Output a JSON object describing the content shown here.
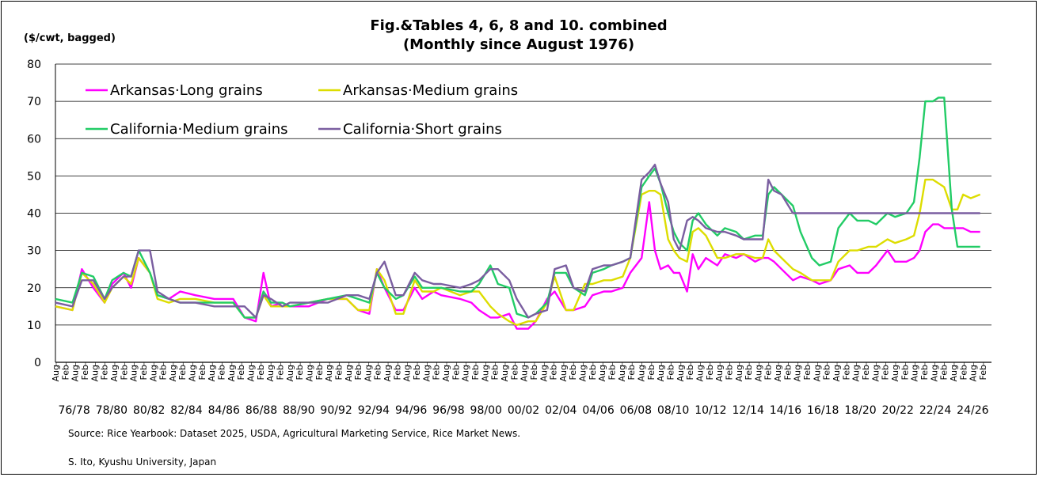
{
  "chart_data": {
    "type": "line",
    "title": "Fig.&Tables 4, 6, 8 and 10. combined",
    "subtitle": "(Monthly since August 1976)",
    "ylabel": "($/cwt, bagged)",
    "ylim": [
      0,
      80
    ],
    "yticks": [
      0,
      10,
      20,
      30,
      40,
      50,
      60,
      70,
      80
    ],
    "grid": true,
    "legend_position": "top-left",
    "x_tick_labels": [
      "Aug",
      "Feb",
      "Aug",
      "Feb",
      "Aug",
      "Feb",
      "Aug",
      "Feb",
      "Aug",
      "Feb",
      "Aug",
      "Feb",
      "Aug",
      "Feb",
      "Aug",
      "Feb",
      "Aug",
      "Feb",
      "Aug",
      "Feb",
      "Aug",
      "Feb",
      "Aug",
      "Feb",
      "Aug",
      "Feb",
      "Aug",
      "Feb",
      "Aug",
      "Feb",
      "Aug",
      "Feb",
      "Aug",
      "Feb",
      "Aug",
      "Feb",
      "Aug",
      "Feb",
      "Aug",
      "Feb",
      "Aug",
      "Feb",
      "Aug",
      "Feb",
      "Aug",
      "Feb",
      "Aug",
      "Feb",
      "Aug",
      "Feb",
      "Aug",
      "Feb",
      "Aug",
      "Feb",
      "Aug",
      "Feb",
      "Aug",
      "Feb",
      "Aug",
      "Feb",
      "Aug",
      "Feb",
      "Aug",
      "Feb",
      "Aug",
      "Feb",
      "Aug",
      "Feb",
      "Aug",
      "Feb",
      "Aug",
      "Feb",
      "Aug",
      "Feb",
      "Aug",
      "Feb",
      "Aug",
      "Feb",
      "Aug",
      "Feb",
      "Aug",
      "Feb",
      "Aug",
      "Feb",
      "Aug",
      "Feb",
      "Aug",
      "Feb",
      "Aug",
      "Feb",
      "Aug",
      "Feb",
      "Aug",
      "Feb",
      "Aug",
      "Feb"
    ],
    "periods": [
      "76/78",
      "78/80",
      "80/82",
      "82/84",
      "84/86",
      "86/88",
      "88/90",
      "90/92",
      "92/94",
      "94/96",
      "96/98",
      "98/00",
      "00/02",
      "02/04",
      "04/06",
      "06/08",
      "08/10",
      "10/12",
      "12/14",
      "14/16",
      "16/18",
      "18/20",
      "20/22",
      "22/24",
      "24/26"
    ],
    "x": [
      1976.6,
      1977.5,
      1978.0,
      1978.6,
      1979.2,
      1979.6,
      1980.2,
      1980.6,
      1981.0,
      1981.6,
      1982.0,
      1982.6,
      1983.2,
      1984.0,
      1985.0,
      1986.0,
      1986.6,
      1987.2,
      1987.6,
      1988.0,
      1988.6,
      1989.0,
      1990.0,
      1991.0,
      1992.0,
      1992.6,
      1993.2,
      1993.6,
      1994.0,
      1994.6,
      1995.0,
      1995.6,
      1996.0,
      1996.6,
      1997.0,
      1998.0,
      1998.6,
      1999.0,
      1999.6,
      2000.0,
      2000.6,
      2001.0,
      2001.6,
      2002.0,
      2002.6,
      2003.0,
      2003.6,
      2004.0,
      2004.6,
      2005.0,
      2005.6,
      2006.0,
      2006.6,
      2007.0,
      2007.6,
      2008.0,
      2008.3,
      2008.6,
      2009.0,
      2009.3,
      2009.6,
      2010.0,
      2010.3,
      2010.6,
      2011.0,
      2011.6,
      2012.0,
      2012.6,
      2013.0,
      2013.6,
      2014.0,
      2014.3,
      2014.6,
      2015.0,
      2015.6,
      2016.0,
      2016.6,
      2017.0,
      2017.6,
      2018.0,
      2018.6,
      2019.0,
      2019.6,
      2020.0,
      2020.6,
      2021.0,
      2021.6,
      2022.0,
      2022.3,
      2022.6,
      2023.0,
      2023.3,
      2023.6,
      2024.0,
      2024.3,
      2024.6,
      2025.0,
      2025.5
    ],
    "series": [
      {
        "name": "Arkansas·Long grains",
        "color": "#ff00ff",
        "values": [
          15,
          14,
          25,
          20,
          16,
          21,
          24,
          20,
          28,
          24,
          18,
          17,
          19,
          18,
          17,
          17,
          12,
          11,
          24,
          15,
          16,
          15,
          15,
          17,
          17,
          14,
          13,
          25,
          20,
          14,
          14,
          20,
          17,
          19,
          18,
          17,
          16,
          14,
          12,
          12,
          13,
          9,
          9,
          11,
          17,
          19,
          14,
          14,
          15,
          18,
          19,
          19,
          20,
          24,
          28,
          43,
          30,
          25,
          26,
          24,
          24,
          19,
          29,
          25,
          28,
          26,
          29,
          28,
          29,
          27,
          28,
          28,
          27,
          25,
          22,
          23,
          22,
          21,
          22,
          25,
          26,
          24,
          24,
          26,
          30,
          27,
          27,
          28,
          30,
          35,
          37,
          37,
          36,
          36,
          36,
          36,
          35,
          35
        ]
      },
      {
        "name": "Arkansas·Medium grains",
        "color": "#dddd00",
        "values": [
          15,
          14,
          24,
          21,
          16,
          20,
          23,
          21,
          28,
          24,
          17,
          16,
          17,
          17,
          16,
          16,
          12,
          12,
          18,
          15,
          15,
          15,
          16,
          17,
          17,
          14,
          14,
          25,
          22,
          13,
          13,
          22,
          19,
          19,
          20,
          18,
          19,
          19,
          15,
          13,
          11,
          10,
          11,
          11,
          16,
          23,
          14,
          14,
          21,
          21,
          22,
          22,
          23,
          28,
          45,
          46,
          46,
          45,
          33,
          30,
          28,
          27,
          35,
          36,
          34,
          28,
          28,
          29,
          29,
          28,
          28,
          33,
          30,
          28,
          25,
          24,
          22,
          22,
          22,
          27,
          30,
          30,
          31,
          31,
          33,
          32,
          33,
          34,
          40,
          49,
          49,
          48,
          47,
          41,
          41,
          45,
          44,
          45
        ]
      },
      {
        "name": "California·Medium grains",
        "color": "#22cc66",
        "values": [
          17,
          16,
          24,
          23,
          17,
          22,
          24,
          23,
          30,
          24,
          18,
          17,
          16,
          16,
          16,
          16,
          12,
          12,
          19,
          16,
          16,
          15,
          16,
          17,
          18,
          17,
          16,
          24,
          20,
          17,
          18,
          23,
          20,
          20,
          20,
          19,
          19,
          21,
          26,
          21,
          20,
          13,
          12,
          13,
          16,
          24,
          24,
          20,
          18,
          24,
          25,
          26,
          27,
          28,
          47,
          50,
          52,
          48,
          40,
          35,
          32,
          30,
          38,
          40,
          37,
          34,
          36,
          35,
          33,
          34,
          34,
          45,
          47,
          45,
          42,
          35,
          28,
          26,
          27,
          36,
          40,
          38,
          38,
          37,
          40,
          39,
          40,
          43,
          55,
          70,
          70,
          71,
          71,
          41,
          31,
          31,
          31,
          31
        ]
      },
      {
        "name": "California·Short grains",
        "color": "#7a5ea0",
        "values": [
          16,
          15,
          22,
          22,
          17,
          20,
          23,
          23,
          30,
          30,
          19,
          17,
          16,
          16,
          15,
          15,
          15,
          12,
          18,
          17,
          15,
          16,
          16,
          16,
          18,
          18,
          17,
          24,
          27,
          18,
          18,
          24,
          22,
          21,
          21,
          20,
          21,
          22,
          25,
          25,
          22,
          17,
          12,
          13,
          14,
          25,
          26,
          20,
          19,
          25,
          26,
          26,
          27,
          28,
          49,
          51,
          53,
          48,
          43,
          33,
          30,
          38,
          39,
          38,
          36,
          35,
          35,
          34,
          33,
          33,
          33,
          49,
          46,
          45,
          40,
          40,
          40,
          40,
          40,
          40,
          40,
          40,
          40,
          40,
          40,
          40,
          40,
          40,
          40,
          40,
          40,
          40,
          40,
          40,
          40,
          40,
          40,
          40
        ]
      }
    ]
  },
  "notes": {
    "source": "Source:  Rice Yearbook: Dataset 2025,  USDA, Agricultural Marketing Service, Rice Market News.",
    "author": "S. Ito, Kyushu University, Japan"
  }
}
